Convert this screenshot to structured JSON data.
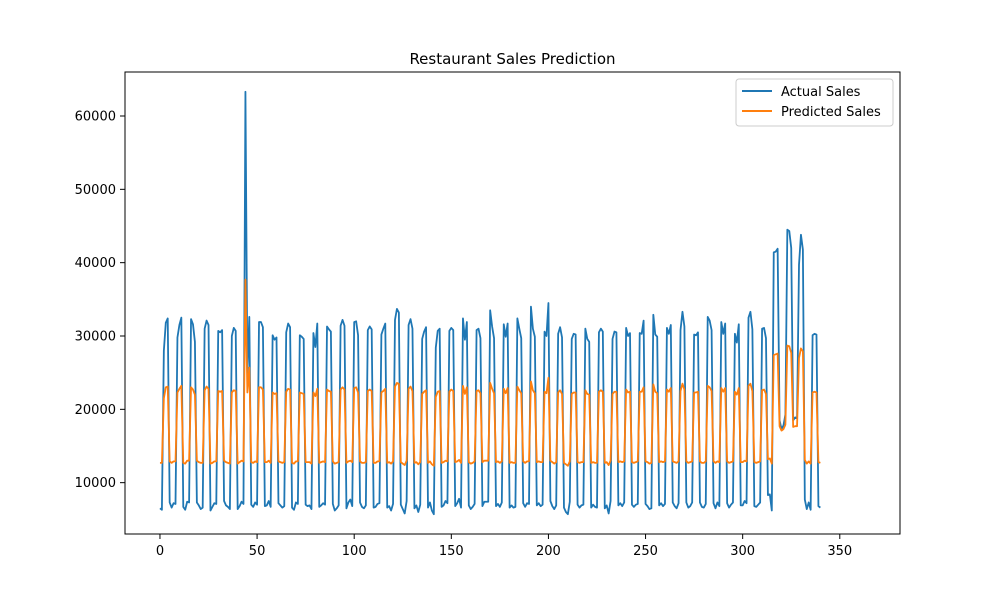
{
  "chart_data": {
    "type": "line",
    "title": "Restaurant Sales Prediction",
    "xlabel": "",
    "ylabel": "",
    "xlim": [
      -18,
      381
    ],
    "ylim": [
      3000,
      66000
    ],
    "x_ticks": [
      0,
      50,
      100,
      150,
      200,
      250,
      300,
      350
    ],
    "y_ticks": [
      10000,
      20000,
      30000,
      40000,
      50000,
      60000
    ],
    "grid": false,
    "legend_position": "top-right",
    "colors": {
      "actual": "#1f77b4",
      "predicted": "#ff7f0e"
    },
    "series": [
      {
        "name": "Actual Sales",
        "values": [
          6500,
          6300,
          28000,
          31800,
          32400,
          7300,
          6600,
          7200,
          7100,
          29800,
          31500,
          32500,
          6700,
          6300,
          7400,
          7300,
          32300,
          31600,
          29200,
          7300,
          6900,
          6400,
          6600,
          31000,
          32100,
          31500,
          6200,
          6700,
          7200,
          7100,
          30700,
          30500,
          30800,
          7500,
          6900,
          6700,
          6400,
          30000,
          31100,
          30700,
          6400,
          6800,
          7400,
          7100,
          63300,
          25000,
          32600,
          7000,
          6700,
          7300,
          7000,
          31900,
          31900,
          31200,
          6800,
          6900,
          7500,
          6700,
          30100,
          29500,
          29800,
          7200,
          6900,
          6600,
          6800,
          30500,
          31700,
          31200,
          6600,
          6300,
          7300,
          7100,
          30100,
          29900,
          29600,
          7000,
          6800,
          6900,
          6400,
          30400,
          28500,
          31700,
          6700,
          6900,
          7200,
          7000,
          31300,
          30900,
          30600,
          7100,
          6200,
          6500,
          6900,
          31400,
          32200,
          31400,
          6500,
          7300,
          7700,
          6800,
          31900,
          32000,
          30100,
          7300,
          6700,
          6500,
          6900,
          30800,
          31300,
          30900,
          6600,
          6700,
          7100,
          7200,
          30200,
          31000,
          31700,
          6600,
          6800,
          6200,
          7100,
          32200,
          33700,
          33200,
          7000,
          6400,
          5800,
          7500,
          31500,
          32300,
          31000,
          6500,
          6900,
          6000,
          7000,
          29600,
          30600,
          31200,
          6600,
          7300,
          6200,
          5700,
          28400,
          30700,
          31000,
          6700,
          6900,
          7500,
          7200,
          30700,
          31100,
          30800,
          6800,
          7200,
          7800,
          6600,
          32400,
          29500,
          31900,
          6900,
          6400,
          6700,
          7100,
          30800,
          31000,
          29700,
          6800,
          7400,
          7400,
          7400,
          33500,
          31300,
          29700,
          6800,
          7100,
          6700,
          7300,
          31600,
          29900,
          31700,
          6600,
          6900,
          6600,
          6700,
          32400,
          31000,
          29700,
          7200,
          6700,
          7200,
          7100,
          34000,
          31000,
          29900,
          6900,
          7200,
          6800,
          7000,
          30600,
          30000,
          34500,
          7500,
          6800,
          6400,
          6900,
          30300,
          31200,
          29800,
          6600,
          6000,
          5700,
          7400,
          29600,
          30300,
          30200,
          7000,
          6600,
          6900,
          7000,
          31000,
          29600,
          29200,
          6600,
          7000,
          6700,
          6600,
          30500,
          31000,
          30600,
          6500,
          6900,
          5800,
          7500,
          29600,
          30600,
          30500,
          6900,
          7200,
          6800,
          7300,
          31100,
          30000,
          30400,
          7000,
          6700,
          7000,
          7100,
          30400,
          30300,
          32100,
          7100,
          6800,
          6400,
          6500,
          32900,
          30200,
          29900,
          6900,
          7200,
          6800,
          7100,
          31100,
          30300,
          31500,
          7300,
          6800,
          6500,
          7200,
          30800,
          33300,
          31300,
          7300,
          6600,
          6800,
          7300,
          30200,
          30100,
          30500,
          7300,
          6700,
          6600,
          7100,
          32600,
          32100,
          30800,
          7200,
          6500,
          7300,
          6800,
          31900,
          30300,
          31700,
          7200,
          6600,
          7000,
          7300,
          30300,
          29100,
          31600,
          6900,
          6900,
          7500,
          7200,
          32500,
          33300,
          30900,
          6800,
          6700,
          7000,
          7300,
          31000,
          31100,
          29700,
          8300,
          8400,
          6200,
          41400,
          41500,
          41900,
          18500,
          17300,
          17800,
          19300,
          44500,
          44300,
          42000,
          18500,
          18900,
          18800,
          39700,
          43800,
          41800,
          7700,
          6400,
          7300,
          6300,
          30100,
          30300,
          30200,
          6800,
          6600
        ]
      },
      {
        "name": "Predicted Sales",
        "values": [
          12700,
          12700,
          21500,
          23000,
          23100,
          12900,
          12700,
          12900,
          12900,
          22300,
          22800,
          23200,
          12700,
          12600,
          13000,
          13000,
          23000,
          22700,
          22000,
          13000,
          12800,
          12700,
          12700,
          22600,
          23100,
          22800,
          12600,
          12700,
          12900,
          12900,
          22500,
          22400,
          22500,
          13000,
          12800,
          12700,
          12600,
          22300,
          22600,
          22500,
          12600,
          12800,
          13000,
          12900,
          37700,
          22300,
          25700,
          12800,
          12700,
          12900,
          12800,
          23000,
          23000,
          22700,
          12800,
          12800,
          13000,
          12700,
          22300,
          22100,
          22200,
          12900,
          12800,
          12700,
          12800,
          22400,
          22800,
          22700,
          12700,
          12600,
          12900,
          12900,
          22300,
          22200,
          22100,
          12800,
          12800,
          12800,
          12600,
          22300,
          21800,
          22800,
          12700,
          12800,
          12900,
          12800,
          22700,
          22500,
          22400,
          12900,
          12600,
          12700,
          12800,
          22700,
          23000,
          22700,
          12700,
          12900,
          13000,
          12800,
          22900,
          23000,
          22300,
          12900,
          12700,
          12700,
          12800,
          22500,
          22700,
          22500,
          12700,
          12700,
          12900,
          12900,
          22300,
          22500,
          22800,
          12700,
          12800,
          12600,
          12900,
          23100,
          23600,
          23500,
          12800,
          12600,
          12400,
          13000,
          22800,
          23100,
          22500,
          12700,
          12800,
          12500,
          12800,
          22100,
          22400,
          22600,
          12700,
          12900,
          12500,
          12300,
          21700,
          22400,
          22500,
          12700,
          12800,
          13000,
          12900,
          22400,
          22700,
          22500,
          12800,
          12900,
          13100,
          12700,
          23200,
          22100,
          23000,
          12800,
          12600,
          12700,
          12900,
          22500,
          22600,
          22200,
          12800,
          13000,
          13000,
          13000,
          23600,
          22800,
          22200,
          12800,
          12900,
          12700,
          12900,
          22800,
          22200,
          22900,
          12700,
          12800,
          12700,
          12700,
          23100,
          22600,
          22200,
          12900,
          12700,
          12900,
          12900,
          23800,
          22600,
          22200,
          12800,
          12900,
          12800,
          12800,
          22400,
          22200,
          24300,
          13000,
          12800,
          12600,
          12800,
          22300,
          22600,
          22100,
          12700,
          12500,
          12300,
          12900,
          22100,
          22300,
          22300,
          12800,
          12700,
          12800,
          12800,
          22600,
          22100,
          22000,
          12700,
          12800,
          12700,
          12700,
          22400,
          22600,
          22400,
          12700,
          12800,
          12400,
          13000,
          22100,
          22400,
          22400,
          12800,
          12900,
          12800,
          12900,
          22700,
          22300,
          22400,
          12800,
          12700,
          12800,
          12900,
          22400,
          22400,
          23000,
          12900,
          12800,
          12600,
          12700,
          23400,
          22400,
          22200,
          12800,
          12900,
          12800,
          12900,
          22700,
          22400,
          22900,
          12900,
          12800,
          12700,
          12900,
          22500,
          23500,
          22700,
          12900,
          12700,
          12800,
          12900,
          22300,
          22300,
          22400,
          12900,
          12700,
          12700,
          12900,
          23200,
          23000,
          22500,
          12900,
          12700,
          12900,
          12800,
          22900,
          22400,
          22900,
          12900,
          12700,
          12800,
          12900,
          22400,
          22000,
          22900,
          12800,
          12800,
          13000,
          12900,
          23200,
          23500,
          22500,
          12800,
          12700,
          12800,
          12900,
          22600,
          22700,
          22100,
          13200,
          13300,
          12600,
          27400,
          27500,
          27600,
          17700,
          17100,
          17300,
          17900,
          28700,
          28600,
          27700,
          17600,
          17700,
          17700,
          27000,
          28300,
          27900,
          13100,
          12600,
          12900,
          12600,
          22300,
          22400,
          22300,
          12800,
          12700
        ]
      }
    ]
  }
}
